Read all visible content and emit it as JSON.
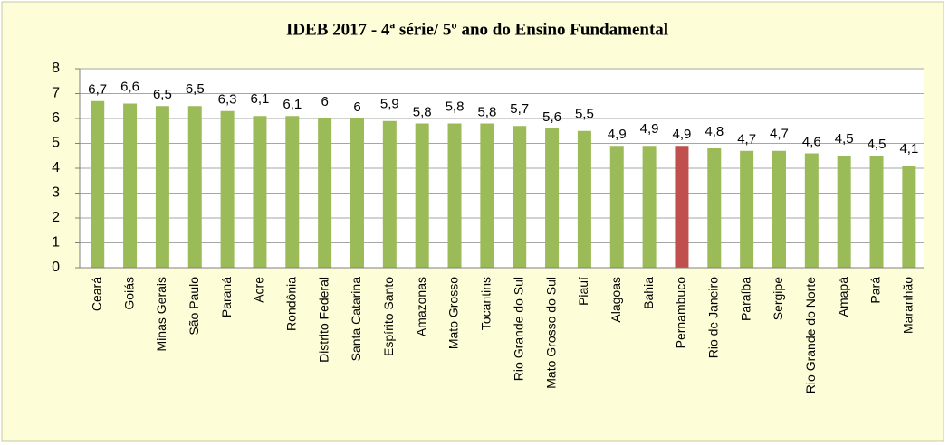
{
  "chart_data": {
    "type": "bar",
    "title": "IDEB 2017 - 4ª série/ 5º ano do Ensino Fundamental",
    "categories": [
      "Ceará",
      "Goiás",
      "Minas Gerais",
      "São Paulo",
      "Paraná",
      "Acre",
      "Rondônia",
      "Distrito Federal",
      "Santa Catarina",
      "Espírito Santo",
      "Amazonas",
      "Mato Grosso",
      "Tocantins",
      "Rio Grande do Sul",
      "Mato Grosso do Sul",
      "Piauí",
      "Alagoas",
      "Bahia",
      "Pernambuco",
      "Rio de Janeiro",
      "Paraíba",
      "Sergipe",
      "Rio Grande do Norte",
      "Amapá",
      "Pará",
      "Maranhão"
    ],
    "values": [
      6.7,
      6.6,
      6.5,
      6.5,
      6.3,
      6.1,
      6.1,
      6,
      6,
      5.9,
      5.8,
      5.8,
      5.8,
      5.7,
      5.6,
      5.5,
      4.9,
      4.9,
      4.9,
      4.8,
      4.7,
      4.7,
      4.6,
      4.5,
      4.5,
      4.1
    ],
    "value_labels": [
      "6,7",
      "6,6",
      "6,5",
      "6,5",
      "6,3",
      "6,1",
      "6,1",
      "6",
      "6",
      "5,9",
      "5,8",
      "5,8",
      "5,8",
      "5,7",
      "5,6",
      "5,5",
      "4,9",
      "4,9",
      "4,9",
      "4,8",
      "4,7",
      "4,7",
      "4,6",
      "4,5",
      "4,5",
      "4,1"
    ],
    "colors": [
      "#9bbb59",
      "#9bbb59",
      "#9bbb59",
      "#9bbb59",
      "#9bbb59",
      "#9bbb59",
      "#9bbb59",
      "#9bbb59",
      "#9bbb59",
      "#9bbb59",
      "#9bbb59",
      "#9bbb59",
      "#9bbb59",
      "#9bbb59",
      "#9bbb59",
      "#9bbb59",
      "#9bbb59",
      "#9bbb59",
      "#c0504d",
      "#9bbb59",
      "#9bbb59",
      "#9bbb59",
      "#9bbb59",
      "#9bbb59",
      "#9bbb59",
      "#9bbb59"
    ],
    "ylim": [
      0,
      8
    ],
    "yticks": [
      0,
      1,
      2,
      3,
      4,
      5,
      6,
      7,
      8
    ],
    "grid": true
  }
}
